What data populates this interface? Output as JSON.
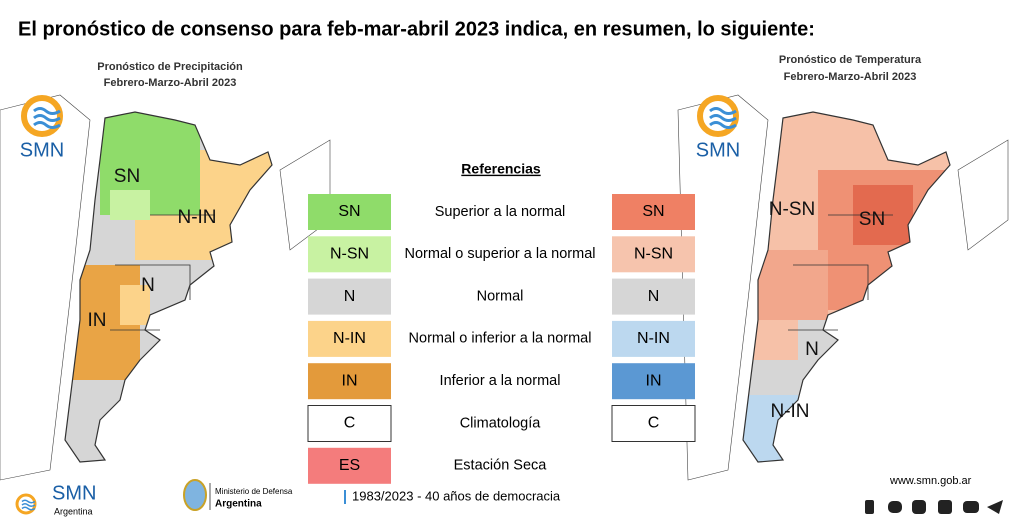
{
  "title": "El pronóstico de consenso para  feb-mar-abril 2023 indica, en resumen, lo siguiente:",
  "maps": [
    {
      "title_lines": [
        "Pronóstico de Precipitación",
        "Febrero-Marzo-Abril 2023"
      ],
      "logo": "SMN",
      "region_labels": [
        "SN",
        "N-IN",
        "N",
        "IN"
      ]
    },
    {
      "title_lines": [
        "Pronóstico de Temperatura",
        "Febrero-Marzo-Abril 2023"
      ],
      "logo": "SMN",
      "region_labels": [
        "N-SN",
        "SN",
        "N",
        "N-IN"
      ]
    }
  ],
  "legend": {
    "title": "Referencias",
    "rows": [
      {
        "precip_code": "SN",
        "description": "Superior a la normal",
        "temp_code": "SN"
      },
      {
        "precip_code": "N-SN",
        "description": "Normal o superior a la normal",
        "temp_code": "N-SN"
      },
      {
        "precip_code": "N",
        "description": "Normal",
        "temp_code": "N"
      },
      {
        "precip_code": "N-IN",
        "description": "Normal o inferior a la normal",
        "temp_code": "N-IN"
      },
      {
        "precip_code": "IN",
        "description": "Inferior a la normal",
        "temp_code": "IN"
      },
      {
        "precip_code": "C",
        "description": "Climatología",
        "temp_code": "C"
      },
      {
        "precip_code": "ES",
        "description": "Estación Seca"
      }
    ]
  },
  "footer": {
    "logo": "SMN",
    "logo_sub": "Argentina",
    "ministry": [
      "Ministerio de Defensa",
      "Argentina"
    ],
    "motto": "1983/2023 - 40 años de democracia",
    "url": "www.smn.gob.ar"
  }
}
